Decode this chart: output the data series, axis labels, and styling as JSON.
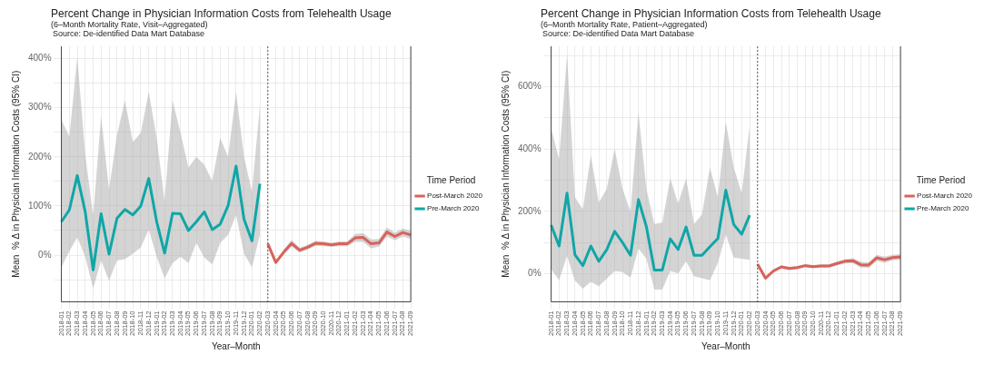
{
  "chart_data": [
    {
      "type": "line",
      "title": "Percent Change in Physician Information Costs from Telehealth Usage",
      "subtitle": "(6–Month Mortality Rate, Visit–Aggregated)",
      "annotations": [
        "Source: De-identified Data Mart Database"
      ],
      "xlabel": "Year–Month",
      "ylabel": "Mean  % Δ in Physician Information Costs (95% CI)",
      "legend_title": "Time Period",
      "legend": "right",
      "grid": true,
      "categories": [
        "2018-01",
        "2018-02",
        "2018-03",
        "2018-04",
        "2018-05",
        "2018-06",
        "2018-07",
        "2018-08",
        "2018-09",
        "2018-10",
        "2018-11",
        "2018-12",
        "2019-01",
        "2019-02",
        "2019-03",
        "2019-04",
        "2019-05",
        "2019-06",
        "2019-07",
        "2019-08",
        "2019-09",
        "2019-10",
        "2019-11",
        "2019-12",
        "2020-01",
        "2020-02",
        "2020-03",
        "2020-04",
        "2020-05",
        "2020-06",
        "2020-07",
        "2020-08",
        "2020-09",
        "2020-10",
        "2020-11",
        "2020-12",
        "2021-01",
        "2021-02",
        "2021-03",
        "2021-04",
        "2021-05",
        "2021-06",
        "2021-07",
        "2021-08",
        "2021-09"
      ],
      "ylim": [
        -95,
        425
      ],
      "yticks": [
        {
          "value": -50,
          "label": null
        },
        {
          "value": 0,
          "label": "0%"
        },
        {
          "value": 50,
          "label": null
        },
        {
          "value": 100,
          "label": "100%"
        },
        {
          "value": 150,
          "label": null
        },
        {
          "value": 200,
          "label": "200%"
        },
        {
          "value": 250,
          "label": null
        },
        {
          "value": 300,
          "label": "300%"
        },
        {
          "value": 350,
          "label": null
        },
        {
          "value": 400,
          "label": "400%"
        }
      ],
      "ref_lines": [
        {
          "axis": "x",
          "value": "2020-03",
          "line_style": "dotted",
          "color": "#555555"
        }
      ],
      "series": [
        {
          "name": "Post-March 2020",
          "color": "#d9625a",
          "values": [
            null,
            null,
            null,
            null,
            null,
            null,
            null,
            null,
            null,
            null,
            null,
            null,
            null,
            null,
            null,
            null,
            null,
            null,
            null,
            null,
            null,
            null,
            null,
            null,
            null,
            null,
            23,
            -15,
            6,
            24,
            10,
            16,
            24,
            23,
            21,
            23,
            23,
            35,
            36,
            23,
            25,
            47,
            38,
            46,
            41
          ],
          "lower": [
            null,
            null,
            null,
            null,
            null,
            null,
            null,
            null,
            null,
            null,
            null,
            null,
            null,
            null,
            null,
            null,
            null,
            null,
            null,
            null,
            null,
            null,
            null,
            null,
            null,
            null,
            17,
            -19,
            1,
            17,
            5,
            11,
            19,
            18,
            17,
            18,
            18,
            27,
            27,
            14,
            17,
            38,
            30,
            38,
            33
          ],
          "upper": [
            null,
            null,
            null,
            null,
            null,
            null,
            null,
            null,
            null,
            null,
            null,
            null,
            null,
            null,
            null,
            null,
            null,
            null,
            null,
            null,
            null,
            null,
            null,
            null,
            null,
            null,
            29,
            -11,
            11,
            31,
            15,
            21,
            29,
            28,
            25,
            28,
            28,
            43,
            45,
            32,
            33,
            56,
            46,
            54,
            49
          ]
        },
        {
          "name": "Pre-March 2020",
          "color": "#10a6a7",
          "values": [
            68,
            92,
            162,
            88,
            -30,
            84,
            2,
            75,
            93,
            82,
            100,
            156,
            68,
            4,
            85,
            84,
            50,
            68,
            88,
            52,
            63,
            101,
            181,
            73,
            29,
            145,
            null,
            null,
            null,
            null,
            null,
            null,
            null,
            null,
            null,
            null,
            null,
            null,
            null,
            null,
            null,
            null,
            null,
            null,
            null
          ],
          "lower": [
            -25,
            8,
            36,
            -3,
            -68,
            -11,
            -52,
            -11,
            -8,
            3,
            16,
            52,
            -3,
            -47,
            -16,
            -3,
            -16,
            25,
            -5,
            -19,
            25,
            41,
            82,
            3,
            -25,
            41,
            null,
            null,
            null,
            null,
            null,
            null,
            null,
            null,
            null,
            null,
            null,
            null,
            null,
            null,
            null,
            null,
            null,
            null,
            null
          ],
          "upper": [
            276,
            241,
            403,
            205,
            80,
            282,
            134,
            244,
            315,
            230,
            249,
            332,
            238,
            110,
            315,
            249,
            178,
            200,
            184,
            151,
            238,
            200,
            332,
            200,
            129,
            304,
            null,
            null,
            null,
            null,
            null,
            null,
            null,
            null,
            null,
            null,
            null,
            null,
            null,
            null,
            null,
            null,
            null,
            null,
            null
          ]
        }
      ]
    },
    {
      "type": "line",
      "title": "Percent Change in Physician Information Costs from Telehealth Usage",
      "subtitle": "(6–Month Mortality Rate, Patient–Aggregated)",
      "annotations": [
        "Source: De-identified Data Mart Database"
      ],
      "xlabel": "Year–Month",
      "ylabel": "Mean  % Δ in Physician Information Costs (95% CI)",
      "legend_title": "Time Period",
      "legend": "right",
      "grid": true,
      "categories": [
        "2018-01",
        "2018-02",
        "2018-03",
        "2018-04",
        "2018-05",
        "2018-06",
        "2018-07",
        "2018-08",
        "2018-09",
        "2018-10",
        "2018-11",
        "2018-12",
        "2019-01",
        "2019-02",
        "2019-03",
        "2019-04",
        "2019-05",
        "2019-06",
        "2019-07",
        "2019-08",
        "2019-09",
        "2019-10",
        "2019-11",
        "2019-12",
        "2020-01",
        "2020-02",
        "2020-03",
        "2020-04",
        "2020-05",
        "2020-06",
        "2020-07",
        "2020-08",
        "2020-09",
        "2020-10",
        "2020-11",
        "2020-12",
        "2021-01",
        "2021-02",
        "2021-03",
        "2021-04",
        "2021-05",
        "2021-06",
        "2021-07",
        "2021-08",
        "2021-09"
      ],
      "ylim": [
        -90,
        730
      ],
      "yticks": [
        {
          "value": 0,
          "label": "0%"
        },
        {
          "value": 100,
          "label": null
        },
        {
          "value": 200,
          "label": "200%"
        },
        {
          "value": 300,
          "label": null
        },
        {
          "value": 400,
          "label": "400%"
        },
        {
          "value": 500,
          "label": null
        },
        {
          "value": 600,
          "label": "600%"
        },
        {
          "value": 700,
          "label": null
        }
      ],
      "ref_lines": [
        {
          "axis": "x",
          "value": "2020-03",
          "line_style": "dotted",
          "color": "#555555"
        }
      ],
      "series": [
        {
          "name": "Post-March 2020",
          "color": "#d9625a",
          "values": [
            null,
            null,
            null,
            null,
            null,
            null,
            null,
            null,
            null,
            null,
            null,
            null,
            null,
            null,
            null,
            null,
            null,
            null,
            null,
            null,
            null,
            null,
            null,
            null,
            null,
            null,
            31,
            -14,
            9,
            22,
            17,
            20,
            26,
            23,
            25,
            25,
            33,
            40,
            42,
            29,
            28,
            51,
            45,
            52,
            54
          ],
          "lower": [
            null,
            null,
            null,
            null,
            null,
            null,
            null,
            null,
            null,
            null,
            null,
            null,
            null,
            null,
            null,
            null,
            null,
            null,
            null,
            null,
            null,
            null,
            null,
            null,
            null,
            null,
            25,
            -18,
            4,
            17,
            12,
            15,
            21,
            18,
            20,
            20,
            27,
            33,
            34,
            20,
            19,
            41,
            35,
            43,
            45
          ],
          "upper": [
            null,
            null,
            null,
            null,
            null,
            null,
            null,
            null,
            null,
            null,
            null,
            null,
            null,
            null,
            null,
            null,
            null,
            null,
            null,
            null,
            null,
            null,
            null,
            null,
            null,
            null,
            37,
            -10,
            14,
            27,
            22,
            25,
            31,
            28,
            30,
            30,
            39,
            47,
            50,
            38,
            37,
            61,
            55,
            61,
            63
          ]
        },
        {
          "name": "Pre-March 2020",
          "color": "#10a6a7",
          "values": [
            156,
            89,
            259,
            61,
            26,
            89,
            40,
            77,
            136,
            100,
            59,
            238,
            151,
            12,
            12,
            112,
            78,
            150,
            59,
            59,
            87,
            113,
            268,
            158,
            127,
            188,
            null,
            null,
            null,
            null,
            null,
            null,
            null,
            null,
            null,
            null,
            null,
            null,
            null,
            null,
            null,
            null,
            null,
            null,
            null
          ],
          "lower": [
            15,
            -21,
            57,
            -22,
            -48,
            -26,
            -40,
            -16,
            9,
            5,
            -12,
            81,
            48,
            -51,
            -51,
            9,
            1,
            40,
            -8,
            -14,
            -21,
            35,
            126,
            52,
            48,
            45,
            null,
            null,
            null,
            null,
            null,
            null,
            null,
            null,
            null,
            null,
            null,
            null,
            null,
            null,
            null,
            null,
            null,
            null,
            null
          ],
          "upper": [
            466,
            367,
            702,
            246,
            207,
            380,
            229,
            272,
            401,
            272,
            199,
            517,
            272,
            160,
            164,
            306,
            225,
            306,
            160,
            190,
            341,
            246,
            487,
            341,
            259,
            474,
            null,
            null,
            null,
            null,
            null,
            null,
            null,
            null,
            null,
            null,
            null,
            null,
            null,
            null,
            null,
            null,
            null,
            null,
            null
          ]
        }
      ]
    }
  ]
}
